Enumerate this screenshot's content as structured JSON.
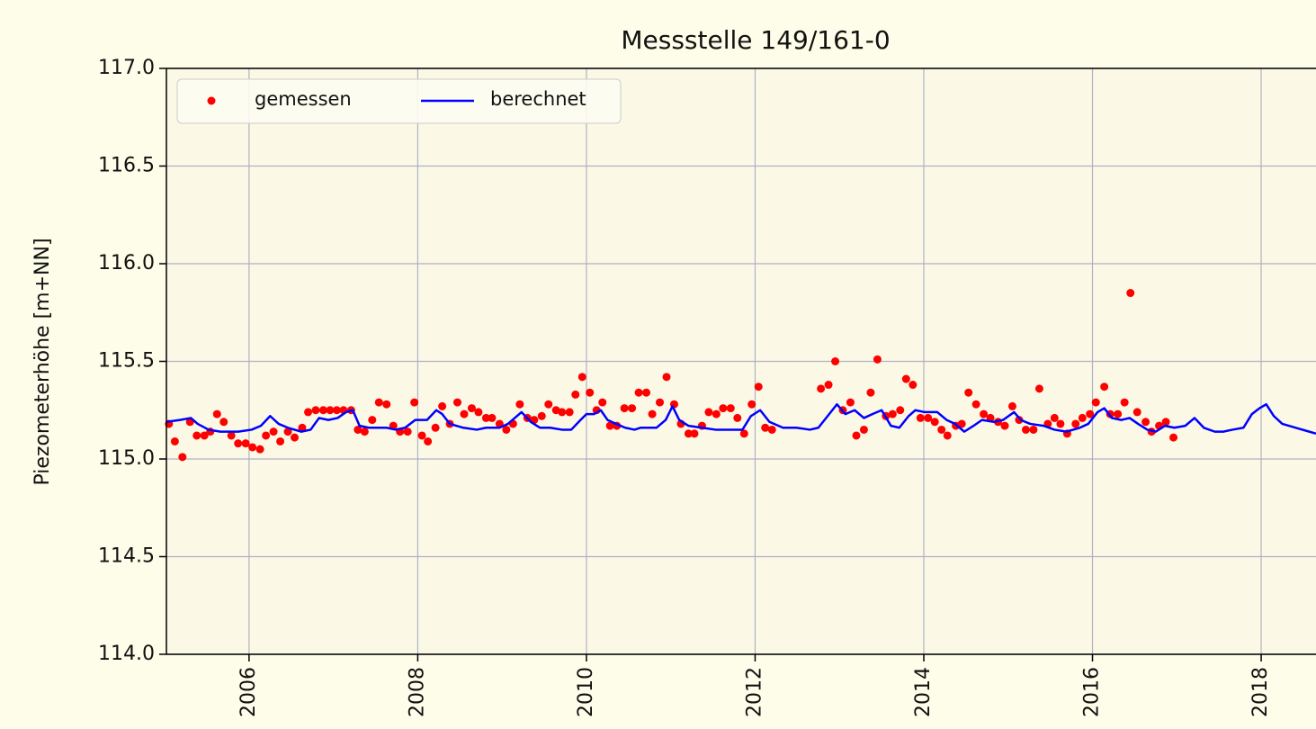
{
  "chart_data": {
    "type": "line",
    "title": "Messstelle 149/161-0",
    "ylabel": "Piezometerhöhe [m+NN]",
    "xlim": [
      2005.02,
      2018.65
    ],
    "ylim": [
      114.0,
      117.0
    ],
    "xticks": [
      2006,
      2008,
      2010,
      2012,
      2014,
      2016,
      2018
    ],
    "yticks": [
      {
        "value": 114.0,
        "label": "114.0"
      },
      {
        "value": 114.5,
        "label": "114.5"
      },
      {
        "value": 115.0,
        "label": "115.0"
      },
      {
        "value": 115.5,
        "label": "115.5"
      },
      {
        "value": 116.0,
        "label": "116.0"
      },
      {
        "value": 116.5,
        "label": "116.5"
      },
      {
        "value": 117.0,
        "label": "117.0"
      }
    ],
    "grid": true,
    "legend": "upper left",
    "series": [
      {
        "name": "gemessen",
        "type": "scatter",
        "color": "#ff0000",
        "x": [
          2005.05,
          2005.12,
          2005.21,
          2005.3,
          2005.38,
          2005.47,
          2005.54,
          2005.62,
          2005.7,
          2005.79,
          2005.87,
          2005.96,
          2006.04,
          2006.13,
          2006.2,
          2006.29,
          2006.37,
          2006.46,
          2006.54,
          2006.63,
          2006.7,
          2006.79,
          2006.88,
          2006.96,
          2007.04,
          2007.12,
          2007.21,
          2007.29,
          2007.37,
          2007.46,
          2007.54,
          2007.63,
          2007.71,
          2007.79,
          2007.88,
          2007.96,
          2008.05,
          2008.12,
          2008.21,
          2008.29,
          2008.38,
          2008.47,
          2008.55,
          2008.64,
          2008.72,
          2008.81,
          2008.88,
          2008.97,
          2009.05,
          2009.13,
          2009.21,
          2009.3,
          2009.38,
          2009.47,
          2009.55,
          2009.64,
          2009.71,
          2009.8,
          2009.87,
          2009.95,
          2010.04,
          2010.12,
          2010.19,
          2010.28,
          2010.36,
          2010.45,
          2010.54,
          2010.62,
          2010.71,
          2010.78,
          2010.87,
          2010.95,
          2011.04,
          2011.12,
          2011.21,
          2011.28,
          2011.37,
          2011.45,
          2011.54,
          2011.62,
          2011.71,
          2011.79,
          2011.87,
          2011.96,
          2012.04,
          2012.12,
          2012.2,
          2012.78,
          2012.87,
          2012.95,
          2013.04,
          2013.13,
          2013.2,
          2013.29,
          2013.37,
          2013.45,
          2013.55,
          2013.63,
          2013.72,
          2013.79,
          2013.87,
          2013.96,
          2014.05,
          2014.13,
          2014.21,
          2014.28,
          2014.38,
          2014.45,
          2014.53,
          2014.62,
          2014.71,
          2014.79,
          2014.88,
          2014.96,
          2015.05,
          2015.13,
          2015.21,
          2015.3,
          2015.37,
          2015.47,
          2015.55,
          2015.62,
          2015.7,
          2015.8,
          2015.88,
          2015.97,
          2016.04,
          2016.14,
          2016.21,
          2016.3,
          2016.38,
          2016.45,
          2016.53,
          2016.63,
          2016.7,
          2016.79,
          2016.87,
          2016.96
        ],
        "values": [
          115.18,
          115.09,
          115.01,
          115.19,
          115.12,
          115.12,
          115.14,
          115.23,
          115.19,
          115.12,
          115.08,
          115.08,
          115.06,
          115.05,
          115.12,
          115.14,
          115.09,
          115.14,
          115.11,
          115.16,
          115.24,
          115.25,
          115.25,
          115.25,
          115.25,
          115.25,
          115.25,
          115.15,
          115.14,
          115.2,
          115.29,
          115.28,
          115.17,
          115.14,
          115.14,
          115.29,
          115.12,
          115.09,
          115.16,
          115.27,
          115.18,
          115.29,
          115.23,
          115.26,
          115.24,
          115.21,
          115.21,
          115.18,
          115.15,
          115.18,
          115.28,
          115.21,
          115.2,
          115.22,
          115.28,
          115.25,
          115.24,
          115.24,
          115.33,
          115.42,
          115.34,
          115.25,
          115.29,
          115.17,
          115.17,
          115.26,
          115.26,
          115.34,
          115.34,
          115.23,
          115.29,
          115.42,
          115.28,
          115.18,
          115.13,
          115.13,
          115.17,
          115.24,
          115.23,
          115.26,
          115.26,
          115.21,
          115.13,
          115.28,
          115.37,
          115.16,
          115.15,
          115.36,
          115.38,
          115.5,
          115.25,
          115.29,
          115.12,
          115.15,
          115.34,
          115.51,
          115.22,
          115.23,
          115.25,
          115.41,
          115.38,
          115.21,
          115.21,
          115.19,
          115.15,
          115.12,
          115.17,
          115.18,
          115.34,
          115.28,
          115.23,
          115.21,
          115.19,
          115.17,
          115.27,
          115.2,
          115.15,
          115.15,
          115.36,
          115.18,
          115.21,
          115.18,
          115.13,
          115.18,
          115.21,
          115.23,
          115.29,
          115.37,
          115.23,
          115.23,
          115.29,
          115.85,
          115.24,
          115.19,
          115.14,
          115.17,
          115.19,
          115.11
        ]
      },
      {
        "name": "berechnet",
        "type": "line",
        "color": "#0000ff",
        "x": [
          2005.02,
          2005.18,
          2005.31,
          2005.39,
          2005.52,
          2005.66,
          2005.87,
          2006.03,
          2006.14,
          2006.25,
          2006.35,
          2006.46,
          2006.62,
          2006.73,
          2006.83,
          2006.94,
          2007.05,
          2007.15,
          2007.23,
          2007.31,
          2007.42,
          2007.63,
          2007.74,
          2007.85,
          2007.97,
          2008.11,
          2008.22,
          2008.29,
          2008.38,
          2008.54,
          2008.7,
          2008.81,
          2008.97,
          2009.07,
          2009.23,
          2009.34,
          2009.45,
          2009.57,
          2009.71,
          2009.82,
          2009.93,
          2010.0,
          2010.09,
          2010.17,
          2010.25,
          2010.35,
          2010.46,
          2010.57,
          2010.64,
          2010.83,
          2010.94,
          2011.02,
          2011.1,
          2011.21,
          2011.37,
          2011.53,
          2011.85,
          2011.95,
          2012.06,
          2012.17,
          2012.33,
          2012.49,
          2012.65,
          2012.75,
          2012.86,
          2012.97,
          2013.07,
          2013.18,
          2013.29,
          2013.39,
          2013.5,
          2013.61,
          2013.71,
          2013.82,
          2013.9,
          2014.01,
          2014.16,
          2014.27,
          2014.37,
          2014.48,
          2014.59,
          2014.69,
          2014.83,
          2014.94,
          2015.07,
          2015.15,
          2015.26,
          2015.42,
          2015.55,
          2015.69,
          2015.85,
          2015.95,
          2016.06,
          2016.14,
          2016.23,
          2016.34,
          2016.44,
          2016.54,
          2016.65,
          2016.75,
          2016.86,
          2016.97,
          2017.1,
          2017.21,
          2017.32,
          2017.45,
          2017.55,
          2017.66,
          2017.79,
          2017.89,
          2017.98,
          2018.06,
          2018.15,
          2018.25,
          2018.41,
          2018.57,
          2018.65
        ],
        "values": [
          115.19,
          115.2,
          115.21,
          115.18,
          115.15,
          115.14,
          115.14,
          115.15,
          115.17,
          115.22,
          115.18,
          115.16,
          115.14,
          115.15,
          115.21,
          115.2,
          115.21,
          115.24,
          115.25,
          115.17,
          115.16,
          115.16,
          115.15,
          115.16,
          115.2,
          115.2,
          115.25,
          115.23,
          115.18,
          115.16,
          115.15,
          115.16,
          115.16,
          115.18,
          115.24,
          115.19,
          115.16,
          115.16,
          115.15,
          115.15,
          115.2,
          115.23,
          115.23,
          115.25,
          115.2,
          115.18,
          115.16,
          115.15,
          115.16,
          115.16,
          115.2,
          115.27,
          115.2,
          115.17,
          115.16,
          115.15,
          115.15,
          115.22,
          115.25,
          115.19,
          115.16,
          115.16,
          115.15,
          115.16,
          115.22,
          115.28,
          115.23,
          115.25,
          115.21,
          115.23,
          115.25,
          115.17,
          115.16,
          115.22,
          115.25,
          115.24,
          115.24,
          115.2,
          115.18,
          115.14,
          115.17,
          115.2,
          115.19,
          115.2,
          115.24,
          115.2,
          115.18,
          115.17,
          115.15,
          115.14,
          115.16,
          115.18,
          115.24,
          115.26,
          115.21,
          115.2,
          115.21,
          115.18,
          115.15,
          115.14,
          115.17,
          115.16,
          115.17,
          115.21,
          115.16,
          115.14,
          115.14,
          115.15,
          115.16,
          115.23,
          115.26,
          115.28,
          115.22,
          115.18,
          115.16,
          115.14,
          115.13
        ]
      }
    ]
  }
}
